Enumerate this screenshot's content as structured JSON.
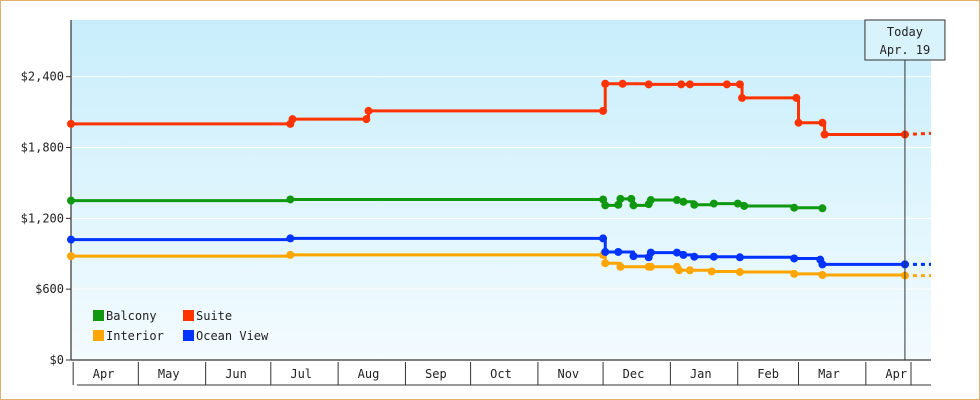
{
  "chart_data": {
    "type": "line",
    "step": true,
    "title": "",
    "xlabel": "",
    "ylabel": "",
    "ylim": [
      0,
      2880
    ],
    "yticks": [
      0,
      600,
      1200,
      1800,
      2400
    ],
    "ytick_labels": [
      "$0",
      "$600",
      "$1,200",
      "$1,800",
      "$2,400"
    ],
    "x_start": "2020-03-31",
    "x_end": "2021-05-01",
    "xtick_labels": [
      "Apr",
      "May",
      "Jun",
      "Jul",
      "Aug",
      "Sep",
      "Oct",
      "Nov",
      "Dec",
      "Jan",
      "Feb",
      "Mar",
      "Apr"
    ],
    "xtick_months": [
      "2020-04",
      "2020-05",
      "2020-06",
      "2020-07",
      "2020-08",
      "2020-09",
      "2020-10",
      "2020-11",
      "2020-12",
      "2021-01",
      "2021-02",
      "2021-03",
      "2021-04"
    ],
    "today": {
      "label_line1": "Today",
      "label_line2": "Apr. 19",
      "date": "2021-04-19"
    },
    "legend": {
      "placement": "bottom-left"
    },
    "series": [
      {
        "name": "Balcony",
        "color": "#109910",
        "projected": false,
        "points": [
          [
            "2020-03-31",
            1350
          ],
          [
            "2020-07-10",
            1360
          ],
          [
            "2020-12-01",
            1360
          ],
          [
            "2020-12-02",
            1310
          ],
          [
            "2020-12-08",
            1315
          ],
          [
            "2020-12-09",
            1365
          ],
          [
            "2020-12-14",
            1365
          ],
          [
            "2020-12-15",
            1310
          ],
          [
            "2020-12-22",
            1320
          ],
          [
            "2020-12-23",
            1355
          ],
          [
            "2021-01-04",
            1355
          ],
          [
            "2021-01-07",
            1340
          ],
          [
            "2021-01-12",
            1315
          ],
          [
            "2021-01-21",
            1325
          ],
          [
            "2021-02-01",
            1325
          ],
          [
            "2021-02-04",
            1305
          ],
          [
            "2021-02-27",
            1290
          ],
          [
            "2021-03-12",
            1285
          ]
        ]
      },
      {
        "name": "Suite",
        "color": "#ff3300",
        "projected": true,
        "points": [
          [
            "2020-03-31",
            2000
          ],
          [
            "2020-07-10",
            2000
          ],
          [
            "2020-07-11",
            2040
          ],
          [
            "2020-08-14",
            2040
          ],
          [
            "2020-08-15",
            2110
          ],
          [
            "2020-12-01",
            2110
          ],
          [
            "2020-12-02",
            2340
          ],
          [
            "2020-12-10",
            2340
          ],
          [
            "2020-12-22",
            2335
          ],
          [
            "2021-01-06",
            2335
          ],
          [
            "2021-01-10",
            2335
          ],
          [
            "2021-01-27",
            2335
          ],
          [
            "2021-02-02",
            2335
          ],
          [
            "2021-02-03",
            2220
          ],
          [
            "2021-02-28",
            2220
          ],
          [
            "2021-03-01",
            2010
          ],
          [
            "2021-03-12",
            2010
          ],
          [
            "2021-03-13",
            1910
          ],
          [
            "2021-04-19",
            1910
          ],
          [
            "2021-05-01",
            1920
          ]
        ]
      },
      {
        "name": "Interior",
        "color": "#ffa500",
        "projected": true,
        "points": [
          [
            "2020-03-31",
            880
          ],
          [
            "2020-07-10",
            890
          ],
          [
            "2020-12-01",
            890
          ],
          [
            "2020-12-02",
            820
          ],
          [
            "2020-12-09",
            790
          ],
          [
            "2020-12-22",
            790
          ],
          [
            "2020-12-23",
            790
          ],
          [
            "2021-01-04",
            790
          ],
          [
            "2021-01-05",
            760
          ],
          [
            "2021-01-10",
            760
          ],
          [
            "2021-01-20",
            750
          ],
          [
            "2021-02-02",
            745
          ],
          [
            "2021-02-27",
            730
          ],
          [
            "2021-03-12",
            720
          ],
          [
            "2021-04-19",
            715
          ],
          [
            "2021-05-01",
            715
          ]
        ]
      },
      {
        "name": "Ocean View",
        "color": "#0033ff",
        "projected": true,
        "points": [
          [
            "2020-03-31",
            1020
          ],
          [
            "2020-07-10",
            1030
          ],
          [
            "2020-12-01",
            1030
          ],
          [
            "2020-12-02",
            915
          ],
          [
            "2020-12-08",
            915
          ],
          [
            "2020-12-15",
            880
          ],
          [
            "2020-12-22",
            870
          ],
          [
            "2020-12-23",
            910
          ],
          [
            "2021-01-04",
            910
          ],
          [
            "2021-01-07",
            890
          ],
          [
            "2021-01-12",
            875
          ],
          [
            "2021-01-21",
            875
          ],
          [
            "2021-02-02",
            870
          ],
          [
            "2021-02-27",
            860
          ],
          [
            "2021-03-11",
            850
          ],
          [
            "2021-03-12",
            810
          ],
          [
            "2021-04-19",
            810
          ],
          [
            "2021-05-01",
            810
          ]
        ]
      }
    ]
  }
}
